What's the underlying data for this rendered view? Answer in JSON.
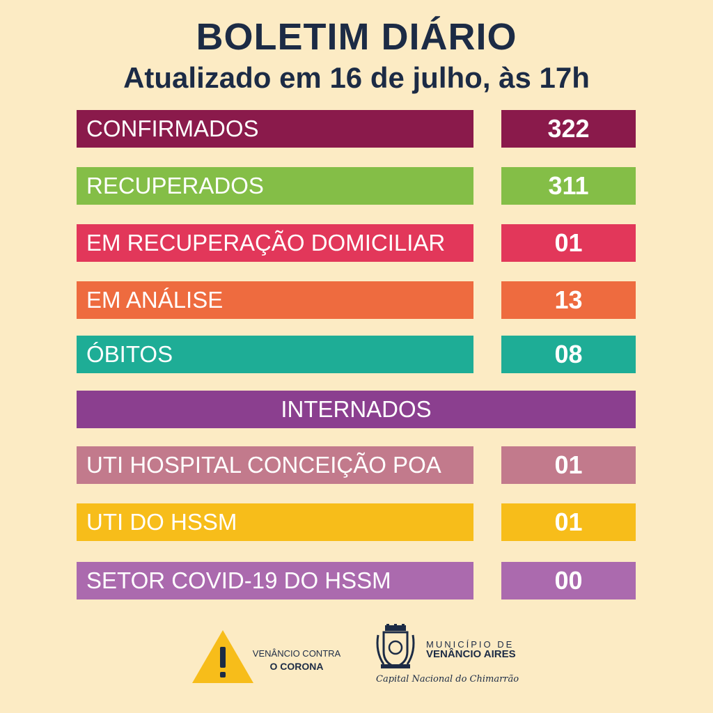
{
  "header": {
    "title": "BOLETIM DIÁRIO",
    "subtitle": "Atualizado em 16 de julho, às 17h"
  },
  "rows": [
    {
      "label": "CONFIRMADOS",
      "value": "322",
      "color": "#8a1a4b"
    },
    {
      "label": "RECUPERADOS",
      "value": "311",
      "color": "#84be47"
    },
    {
      "label": "EM RECUPERAÇÃO DOMICILIAR",
      "value": "01",
      "color": "#e2375a"
    },
    {
      "label": "EM ANÁLISE",
      "value": "13",
      "color": "#ee6b3f"
    },
    {
      "label": "ÓBITOS",
      "value": "08",
      "color": "#1ead96"
    }
  ],
  "internados": {
    "heading": "INTERNADOS",
    "color": "#8b3f8f",
    "rows": [
      {
        "label": "UTI HOSPITAL CONCEIÇÃO POA",
        "value": "01",
        "color": "#c27a8c"
      },
      {
        "label": "UTI DO HSSM",
        "value": "01",
        "color": "#f7bd1a"
      },
      {
        "label": "SETOR COVID-19 DO HSSM",
        "value": "00",
        "color": "#ab6aae"
      }
    ]
  },
  "footer": {
    "campaign_line1": "VENÂNCIO CONTRA",
    "campaign_line2": "O CORONA",
    "warning_icon": "warning-triangle-icon",
    "warning_color": "#f7bd1a",
    "municipality_line1": "MUNICÍPIO DE",
    "municipality_line2": "VENÂNCIO AIRES",
    "slogan": "Capital Nacional do Chimarrão",
    "crest_icon": "city-crest-icon"
  }
}
